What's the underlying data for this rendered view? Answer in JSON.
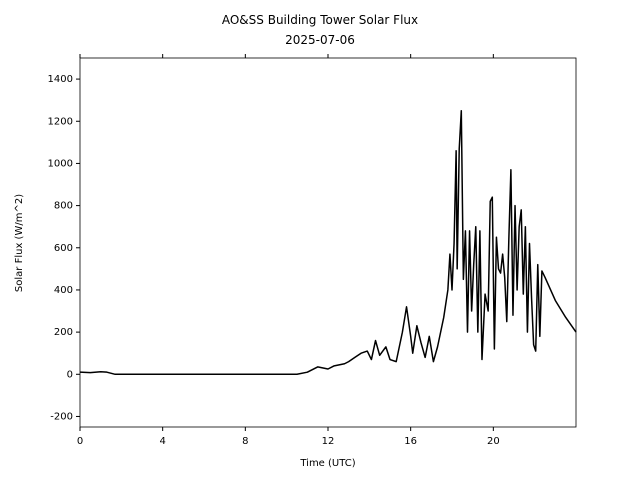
{
  "chart_data": {
    "type": "line",
    "title": "AO&SS Building Tower Solar Flux",
    "subtitle": "2025-07-06",
    "x_label": "Time (UTC)",
    "y_label": "Solar Flux (W/m^2)",
    "xlim": [
      0,
      24
    ],
    "xticks": [
      0,
      4,
      8,
      12,
      16,
      20
    ],
    "ylim": [
      -250,
      1500
    ],
    "yticks": [
      -200,
      0,
      200,
      400,
      600,
      800,
      1000,
      1200,
      1400
    ],
    "grid": false,
    "series": [
      {
        "color": "#000000",
        "x": [
          0,
          0.5,
          1,
          1.3,
          1.7,
          10.5,
          11,
          11.5,
          12,
          12.3,
          12.8,
          13,
          13.3,
          13.6,
          13.9,
          14.1,
          14.3,
          14.5,
          14.8,
          15,
          15.3,
          15.6,
          15.8,
          16,
          16.1,
          16.3,
          16.5,
          16.7,
          16.9,
          17.1,
          17.3,
          17.6,
          17.8,
          17.9,
          18.0,
          18.1,
          18.2,
          18.25,
          18.35,
          18.45,
          18.55,
          18.65,
          18.75,
          18.85,
          18.95,
          19.05,
          19.15,
          19.25,
          19.35,
          19.45,
          19.6,
          19.75,
          19.85,
          19.95,
          20.05,
          20.15,
          20.25,
          20.35,
          20.45,
          20.55,
          20.65,
          20.75,
          20.85,
          20.95,
          21.05,
          21.15,
          21.25,
          21.35,
          21.45,
          21.55,
          21.65,
          21.75,
          21.85,
          21.95,
          22.05,
          22.15,
          22.25,
          22.35,
          22.5,
          23,
          23.5,
          24
        ],
        "values": [
          10,
          8,
          12,
          10,
          0,
          0,
          10,
          35,
          25,
          40,
          50,
          60,
          80,
          100,
          110,
          70,
          160,
          90,
          130,
          70,
          60,
          200,
          320,
          180,
          100,
          230,
          150,
          80,
          180,
          60,
          130,
          270,
          400,
          570,
          400,
          620,
          1060,
          500,
          1070,
          1250,
          450,
          680,
          200,
          680,
          300,
          520,
          700,
          200,
          680,
          70,
          380,
          300,
          820,
          840,
          120,
          650,
          500,
          480,
          570,
          460,
          250,
          640,
          970,
          280,
          800,
          400,
          700,
          780,
          380,
          700,
          200,
          620,
          360,
          140,
          110,
          520,
          180,
          490,
          460,
          350,
          270,
          200
        ]
      }
    ]
  }
}
